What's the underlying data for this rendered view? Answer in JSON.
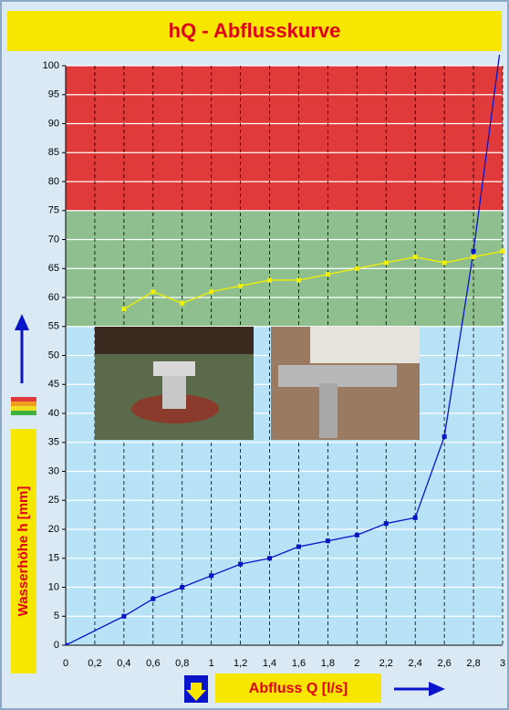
{
  "chart_data": {
    "type": "line",
    "title": "hQ - Abflusskurve",
    "x_label": "Abfluss Q [l/s]",
    "y_label": "Wasserhöhe h [mm]",
    "x": [
      0,
      0.4,
      0.6,
      0.8,
      1,
      1.2,
      1.4,
      1.6,
      1.8,
      2,
      2.2,
      2.4,
      2.6,
      2.8,
      3
    ],
    "series": [
      {
        "color": "#0a14c8",
        "values": [
          0,
          5,
          8,
          10,
          12,
          14,
          15,
          17,
          18,
          19,
          21,
          22,
          36,
          68,
          106
        ]
      },
      {
        "color": "#f0f000",
        "values": [
          null,
          58,
          61,
          59,
          61,
          62,
          63,
          63,
          64,
          65,
          66,
          67,
          66,
          67,
          68
        ]
      }
    ],
    "zones": [
      {
        "from": 0,
        "to": 55,
        "color": "#b8e2f6"
      },
      {
        "from": 55,
        "to": 75,
        "color": "#8fbf8f"
      },
      {
        "from": 75,
        "to": 100,
        "color": "#e03a3a"
      }
    ],
    "xlim": [
      0,
      3
    ],
    "ylim": [
      0,
      100
    ],
    "xticks": [
      0,
      {
        "value": 0.2,
        "label": "0,2"
      },
      {
        "value": 0.4,
        "label": "0,4"
      },
      {
        "value": 0.6,
        "label": "0,6"
      },
      {
        "value": 0.8,
        "label": "0,8"
      },
      1,
      {
        "value": 1.2,
        "label": "1,2"
      },
      {
        "value": 1.4,
        "label": "1,4"
      },
      {
        "value": 1.6,
        "label": "1,6"
      },
      {
        "value": 1.8,
        "label": "1,8"
      },
      2,
      {
        "value": 2.2,
        "label": "2,2"
      },
      {
        "value": 2.4,
        "label": "2,4"
      },
      {
        "value": 2.6,
        "label": "2,6"
      },
      {
        "value": 2.8,
        "label": "2,8"
      },
      3
    ],
    "yticks": [
      0,
      5,
      10,
      15,
      20,
      25,
      30,
      35,
      40,
      45,
      50,
      55,
      60,
      65,
      70,
      75,
      80,
      85,
      90,
      95,
      100
    ],
    "grid": true
  }
}
